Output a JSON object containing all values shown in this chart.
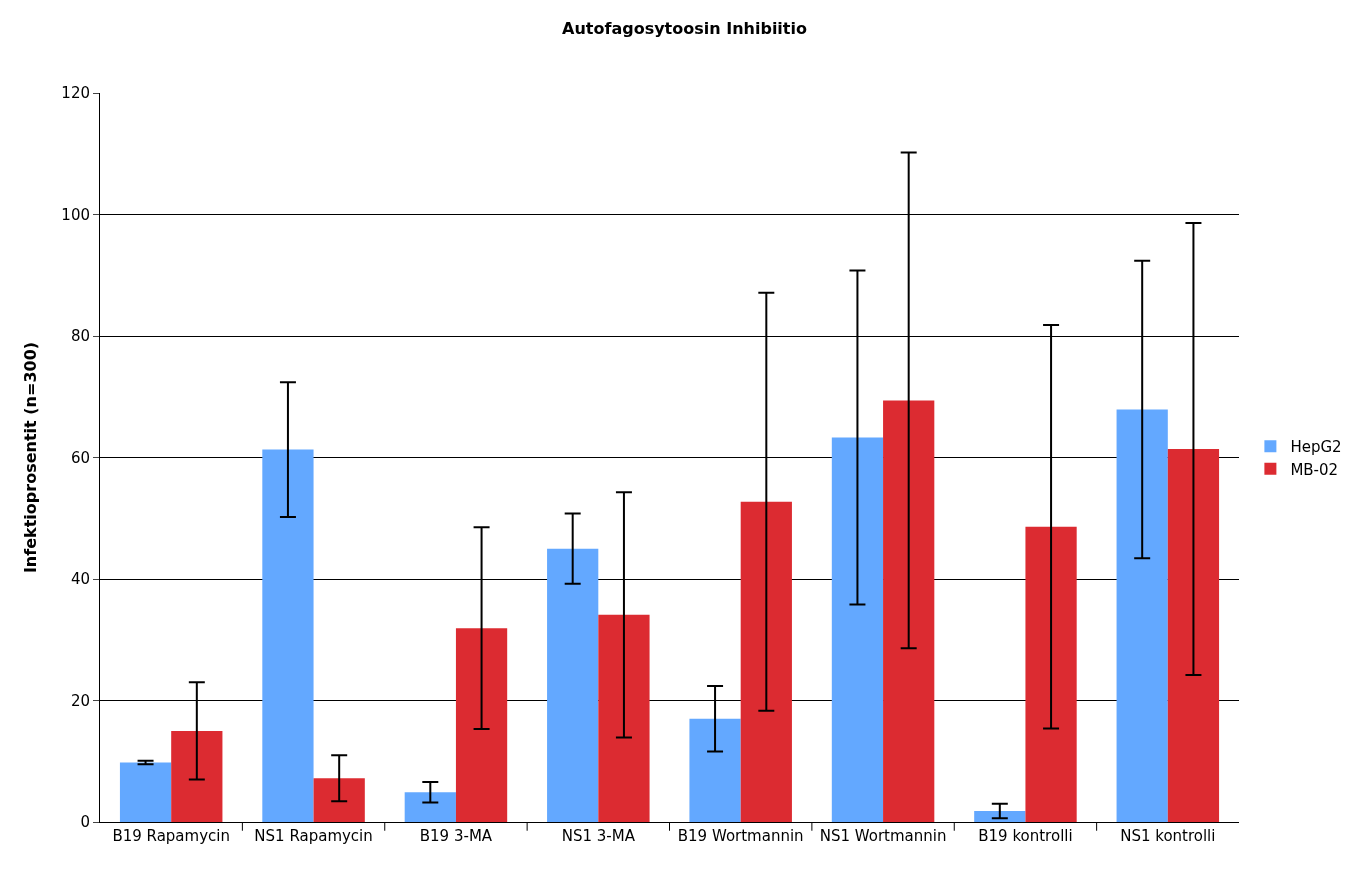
{
  "chart_data": {
    "type": "bar",
    "title": "Autofagosytoosin Inhibiitio",
    "ylabel": "Infektioprosentit (n=300)",
    "categories": [
      "B19 Rapamycin",
      "NS1 Rapamycin",
      "B19 3-MA",
      "NS1 3-MA",
      "B19 Wortmannin",
      "NS1 Wortmannin",
      "B19 kontrolli",
      "NS1 kontrolli"
    ],
    "series": [
      {
        "name": "HepG2",
        "color": "#63a8ff",
        "values": [
          9.8,
          61.3,
          4.9,
          45.0,
          17.0,
          63.3,
          1.8,
          67.9
        ],
        "errors": [
          0.3,
          11.1,
          1.7,
          5.8,
          5.4,
          27.5,
          1.2,
          24.5
        ]
      },
      {
        "name": "MB-02",
        "color": "#dc2b31",
        "values": [
          15.0,
          7.2,
          31.9,
          34.1,
          52.7,
          69.4,
          48.6,
          61.4
        ],
        "errors": [
          8.0,
          3.8,
          16.6,
          20.2,
          34.4,
          40.8,
          33.2,
          37.2
        ]
      }
    ],
    "ylim": [
      0,
      120
    ],
    "yticks": [
      0,
      20,
      40,
      60,
      80,
      100,
      120
    ],
    "grid": "y",
    "legend": "right"
  }
}
